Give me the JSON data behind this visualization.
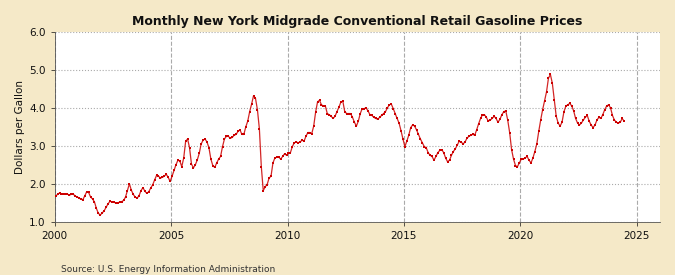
{
  "title": "Monthly New York Midgrade Conventional Retail Gasoline Prices",
  "ylabel": "Dollars per Gallon",
  "source": "Source: U.S. Energy Information Administration",
  "background_color": "#f5e9c8",
  "plot_background_color": "#ffffff",
  "line_color": "#cc0000",
  "xlim_start": 2000,
  "xlim_end": 2026,
  "ylim": [
    1.0,
    6.0
  ],
  "yticks": [
    1.0,
    2.0,
    3.0,
    4.0,
    5.0,
    6.0
  ],
  "xticks": [
    2000,
    2005,
    2010,
    2015,
    2020,
    2025
  ],
  "values": [
    1.68,
    1.72,
    1.76,
    1.72,
    1.73,
    1.72,
    1.73,
    1.7,
    1.72,
    1.73,
    1.68,
    1.65,
    1.63,
    1.59,
    1.58,
    1.68,
    1.79,
    1.77,
    1.65,
    1.6,
    1.52,
    1.35,
    1.22,
    1.18,
    1.23,
    1.29,
    1.38,
    1.47,
    1.54,
    1.52,
    1.52,
    1.49,
    1.49,
    1.52,
    1.53,
    1.56,
    1.65,
    1.82,
    2.0,
    1.83,
    1.72,
    1.65,
    1.62,
    1.69,
    1.82,
    1.9,
    1.8,
    1.75,
    1.79,
    1.89,
    1.97,
    2.1,
    2.22,
    2.2,
    2.15,
    2.17,
    2.2,
    2.25,
    2.17,
    2.06,
    2.2,
    2.35,
    2.5,
    2.62,
    2.6,
    2.45,
    2.68,
    3.12,
    3.18,
    2.95,
    2.52,
    2.42,
    2.5,
    2.63,
    2.8,
    3.05,
    3.15,
    3.18,
    3.1,
    2.95,
    2.65,
    2.48,
    2.43,
    2.55,
    2.65,
    2.72,
    2.98,
    3.18,
    3.25,
    3.25,
    3.2,
    3.22,
    3.28,
    3.3,
    3.38,
    3.42,
    3.3,
    3.3,
    3.5,
    3.65,
    3.9,
    4.1,
    4.32,
    4.25,
    3.95,
    3.45,
    2.45,
    1.82,
    1.92,
    1.98,
    2.15,
    2.2,
    2.55,
    2.68,
    2.7,
    2.7,
    2.65,
    2.72,
    2.79,
    2.75,
    2.8,
    2.82,
    2.98,
    3.08,
    3.1,
    3.08,
    3.1,
    3.15,
    3.12,
    3.25,
    3.35,
    3.35,
    3.32,
    3.52,
    3.89,
    4.16,
    4.2,
    4.08,
    4.05,
    4.05,
    3.85,
    3.82,
    3.78,
    3.72,
    3.78,
    3.9,
    4.02,
    4.15,
    4.18,
    3.9,
    3.85,
    3.85,
    3.85,
    3.75,
    3.62,
    3.52,
    3.65,
    3.85,
    3.98,
    3.98,
    4.0,
    3.92,
    3.82,
    3.8,
    3.75,
    3.72,
    3.7,
    3.75,
    3.8,
    3.85,
    3.9,
    4.0,
    4.08,
    4.1,
    3.98,
    3.85,
    3.72,
    3.6,
    3.4,
    3.18,
    2.98,
    3.12,
    3.28,
    3.48,
    3.55,
    3.52,
    3.42,
    3.3,
    3.18,
    3.08,
    2.98,
    2.95,
    2.82,
    2.75,
    2.72,
    2.62,
    2.72,
    2.82,
    2.88,
    2.9,
    2.82,
    2.68,
    2.58,
    2.62,
    2.75,
    2.85,
    2.92,
    3.02,
    3.12,
    3.1,
    3.05,
    3.1,
    3.2,
    3.25,
    3.28,
    3.3,
    3.28,
    3.42,
    3.58,
    3.72,
    3.82,
    3.82,
    3.75,
    3.65,
    3.68,
    3.72,
    3.78,
    3.72,
    3.62,
    3.7,
    3.82,
    3.9,
    3.92,
    3.68,
    3.35,
    2.9,
    2.65,
    2.48,
    2.45,
    2.55,
    2.65,
    2.65,
    2.68,
    2.72,
    2.62,
    2.55,
    2.68,
    2.85,
    3.05,
    3.38,
    3.68,
    3.95,
    4.18,
    4.42,
    4.78,
    4.88,
    4.65,
    4.22,
    3.78,
    3.6,
    3.52,
    3.62,
    3.9,
    4.05,
    4.08,
    4.12,
    4.05,
    3.92,
    3.72,
    3.6,
    3.55,
    3.6,
    3.68,
    3.75,
    3.8,
    3.65,
    3.55,
    3.48,
    3.55,
    3.68,
    3.75,
    3.72,
    3.82,
    3.95,
    4.05,
    4.08,
    4.0,
    3.8,
    3.68,
    3.62,
    3.6,
    3.62,
    3.72,
    3.65
  ]
}
